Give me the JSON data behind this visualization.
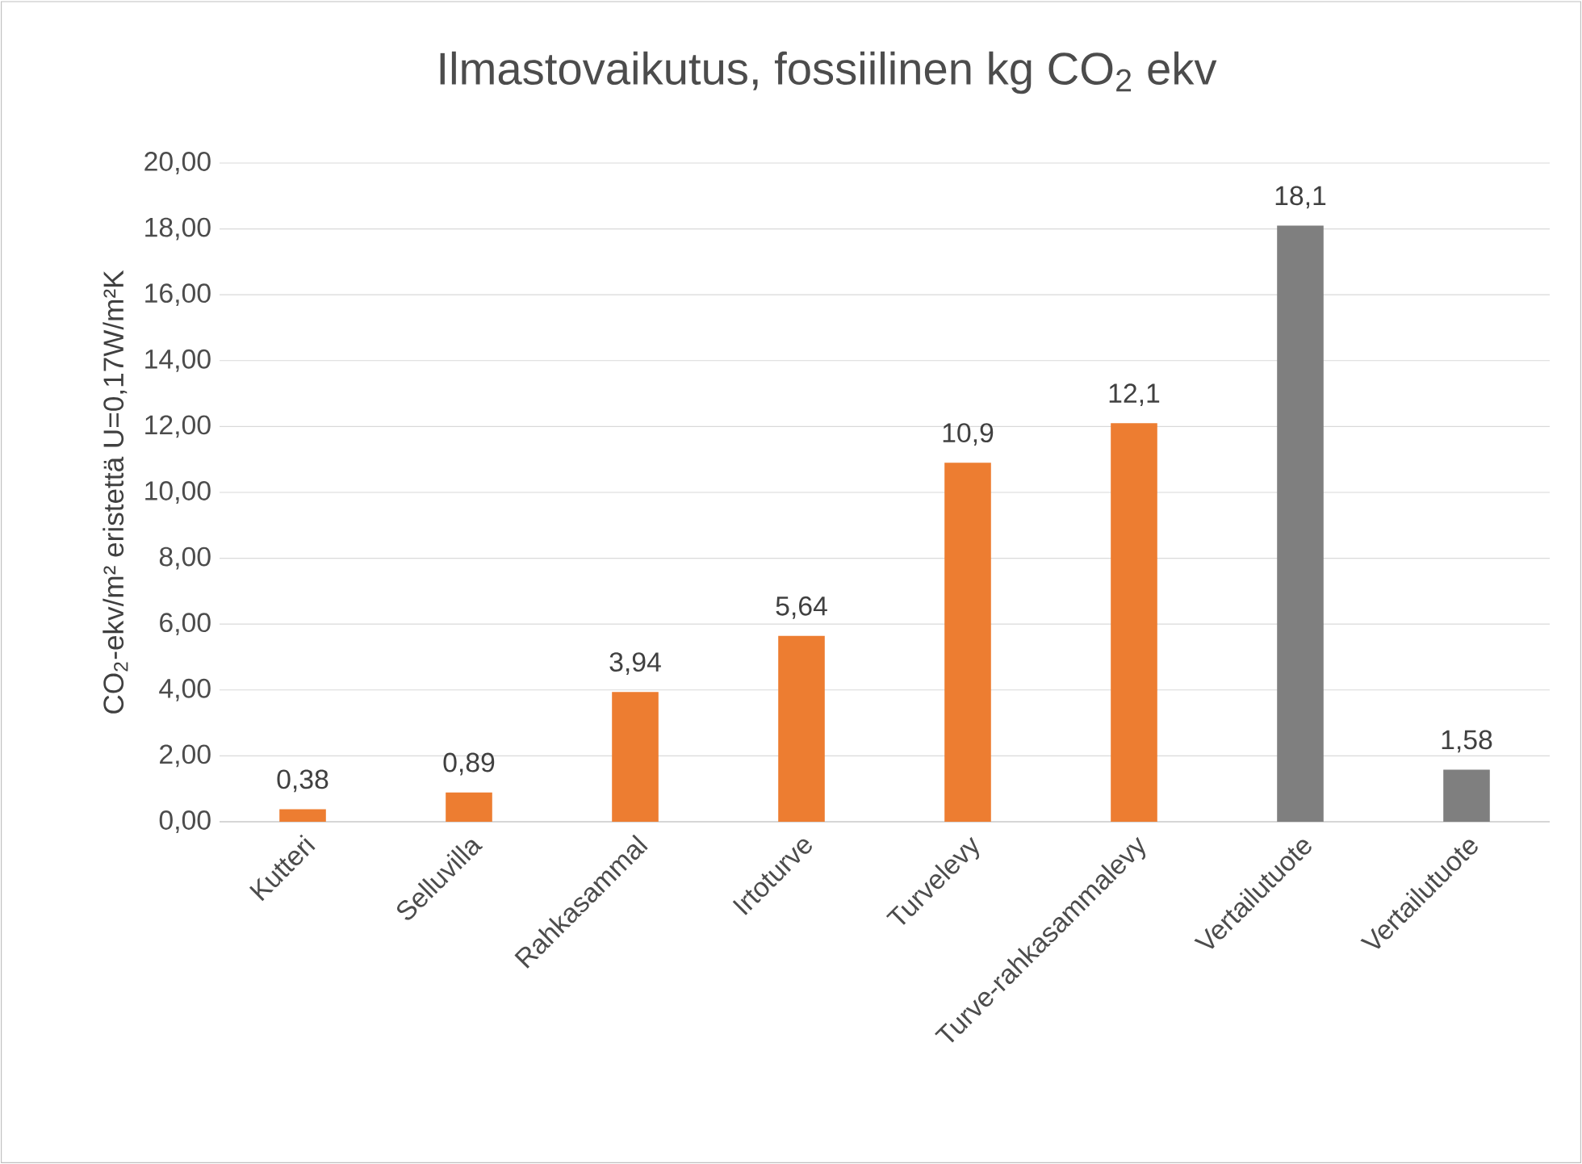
{
  "chart_data": {
    "type": "bar",
    "title": "Ilmastovaikutus, fossiilinen kg CO$_{2}$ ekv",
    "ylabel": "CO$_{2}$-ekv/m² eristettä U=0,17W/m²K",
    "categories": [
      "Kutteri",
      "Selluvilla",
      "Rahkasammal",
      "Irtoturve",
      "Turvelevy",
      "Turve-rahkasammalevy",
      "Vertailutuote",
      "Vertailutuote"
    ],
    "values": [
      0.38,
      0.89,
      3.94,
      5.64,
      10.9,
      12.1,
      18.1,
      1.58
    ],
    "value_labels": [
      "0,38",
      "0,89",
      "3,94",
      "5,64",
      "10,9",
      "12,1",
      "18,1",
      "1,58"
    ],
    "colors": [
      "#ed7d31",
      "#ed7d31",
      "#ed7d31",
      "#ed7d31",
      "#ed7d31",
      "#ed7d31",
      "#7f7f7f",
      "#7f7f7f"
    ],
    "ylim": [
      0,
      20
    ],
    "yticks": [
      {
        "value": 0,
        "label": "0,00"
      },
      {
        "value": 2,
        "label": "2,00"
      },
      {
        "value": 4,
        "label": "4,00"
      },
      {
        "value": 6,
        "label": "6,00"
      },
      {
        "value": 8,
        "label": "8,00"
      },
      {
        "value": 10,
        "label": "10,00"
      },
      {
        "value": 12,
        "label": "12,00"
      },
      {
        "value": 14,
        "label": "14,00"
      },
      {
        "value": 16,
        "label": "16,00"
      },
      {
        "value": 18,
        "label": "18,00"
      },
      {
        "value": 20,
        "label": "20,00"
      }
    ],
    "grid": "y"
  }
}
